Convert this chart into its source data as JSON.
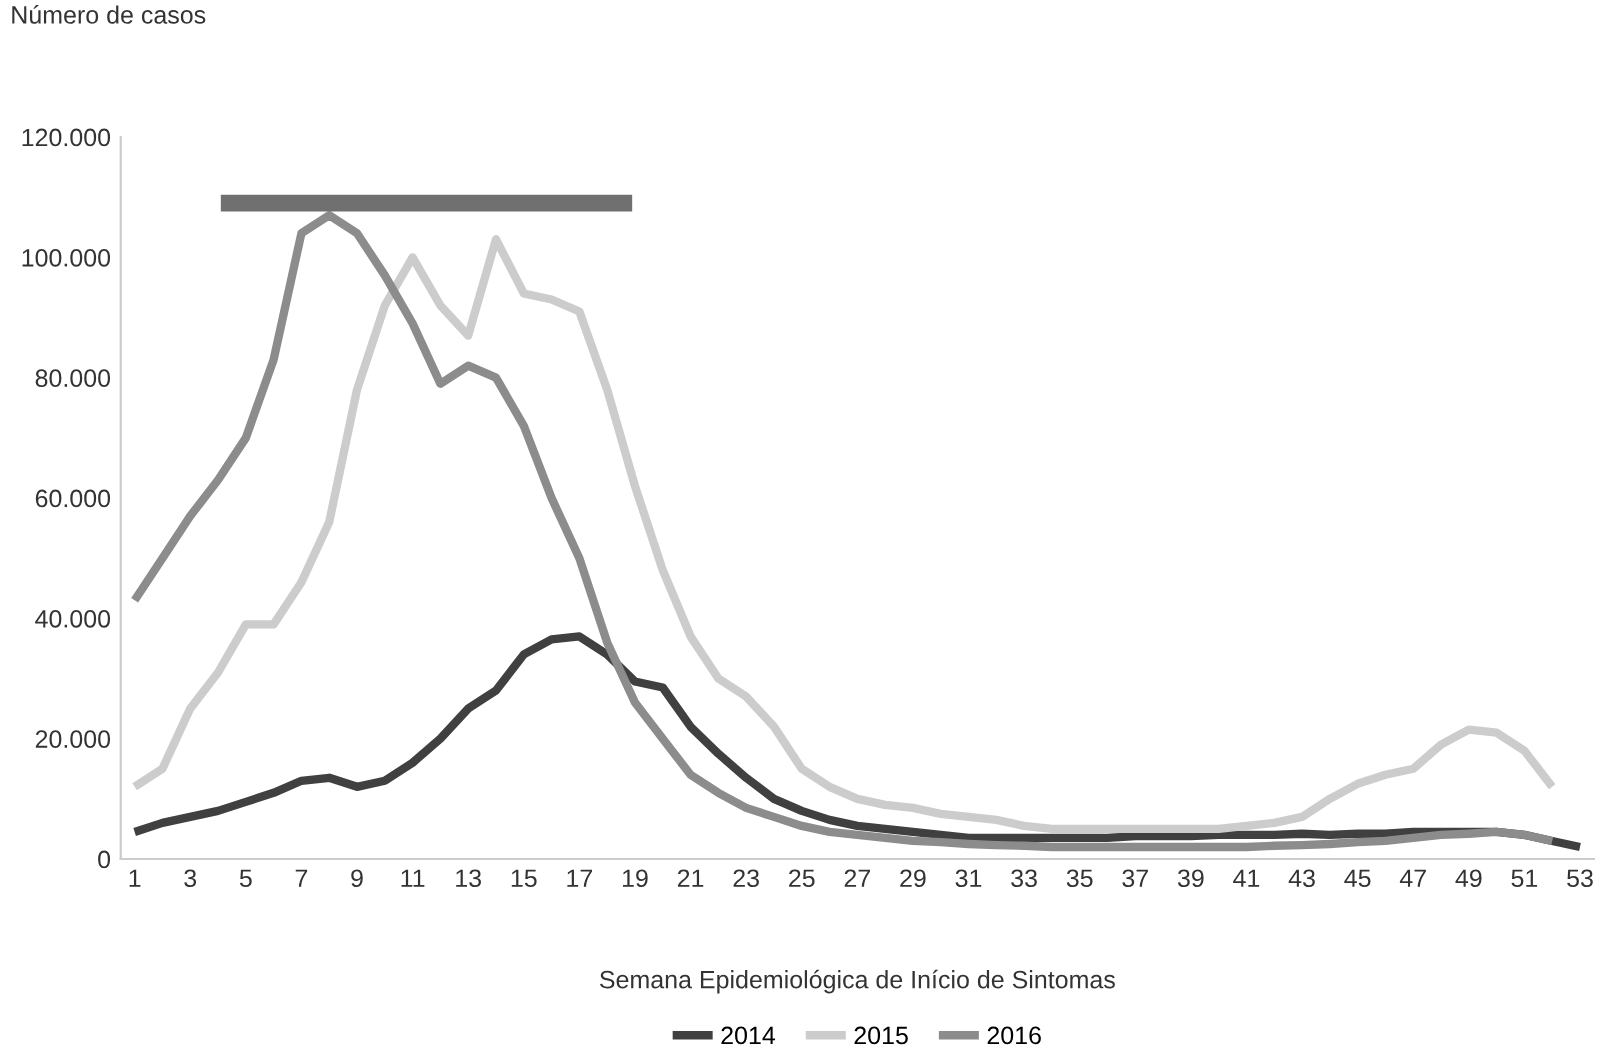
{
  "chart_data": {
    "type": "line",
    "ylabel": "Número de casos",
    "xlabel": "Semana Epidemiológica de Início de Sintomas",
    "xlim": [
      0.5,
      53.5
    ],
    "xticks": [
      1,
      3,
      5,
      7,
      9,
      11,
      13,
      15,
      17,
      19,
      21,
      23,
      25,
      27,
      29,
      31,
      33,
      35,
      37,
      39,
      41,
      43,
      45,
      47,
      49,
      51,
      53
    ],
    "ylim": [
      0,
      120000
    ],
    "yticks": [
      {
        "value": 0,
        "label": "0"
      },
      {
        "value": 20000,
        "label": "20.000"
      },
      {
        "value": 40000,
        "label": "40.000"
      },
      {
        "value": 60000,
        "label": "60.000"
      },
      {
        "value": 80000,
        "label": "80.000"
      },
      {
        "value": 100000,
        "label": "100.000"
      },
      {
        "value": 120000,
        "label": "120.000"
      }
    ],
    "grid": false,
    "legend": "bottom",
    "marker": "none",
    "line_style": "solid",
    "series": [
      {
        "name": "2014",
        "color": "#404040",
        "x": [
          1,
          2,
          3,
          4,
          5,
          6,
          7,
          8,
          9,
          10,
          11,
          12,
          13,
          14,
          15,
          16,
          17,
          18,
          19,
          20,
          21,
          22,
          23,
          24,
          25,
          26,
          27,
          28,
          29,
          30,
          31,
          32,
          33,
          34,
          35,
          36,
          37,
          38,
          39,
          40,
          41,
          42,
          43,
          44,
          45,
          46,
          47,
          48,
          49,
          50,
          51,
          52,
          53
        ],
        "values": [
          4500,
          6000,
          7000,
          8000,
          9500,
          11000,
          13000,
          13500,
          12000,
          13000,
          16000,
          20000,
          25000,
          28000,
          34000,
          36500,
          37000,
          34000,
          29500,
          28500,
          22000,
          17500,
          13500,
          10000,
          8000,
          6500,
          5500,
          5000,
          4500,
          4000,
          3500,
          3500,
          3500,
          3500,
          3500,
          3500,
          3800,
          3800,
          3800,
          4000,
          4000,
          4000,
          4200,
          4000,
          4200,
          4200,
          4500,
          4500,
          4500,
          4500,
          4000,
          3000,
          2000
        ]
      },
      {
        "name": "2015",
        "color": "#cccccc",
        "x": [
          1,
          2,
          3,
          4,
          5,
          6,
          7,
          8,
          9,
          10,
          11,
          12,
          13,
          14,
          15,
          16,
          17,
          18,
          19,
          20,
          21,
          22,
          23,
          24,
          25,
          26,
          27,
          28,
          29,
          30,
          31,
          32,
          33,
          34,
          35,
          36,
          37,
          38,
          39,
          40,
          41,
          42,
          43,
          44,
          45,
          46,
          47,
          48,
          49,
          50,
          51,
          52
        ],
        "values": [
          12000,
          15000,
          25000,
          31000,
          39000,
          39000,
          46000,
          56000,
          78000,
          92000,
          100000,
          92000,
          87000,
          103000,
          94000,
          93000,
          91000,
          78000,
          62000,
          48000,
          37000,
          30000,
          27000,
          22000,
          15000,
          12000,
          10000,
          9000,
          8500,
          7500,
          7000,
          6500,
          5500,
          5000,
          5000,
          5000,
          5000,
          5000,
          5000,
          5000,
          5500,
          6000,
          7000,
          10000,
          12500,
          14000,
          15000,
          19000,
          21500,
          21000,
          18000,
          12000
        ]
      },
      {
        "name": "2016",
        "color": "#8c8c8c",
        "x": [
          1,
          2,
          3,
          4,
          5,
          6,
          7,
          8,
          9,
          10,
          11,
          12,
          13,
          14,
          15,
          16,
          17,
          18,
          19,
          20,
          21,
          22,
          23,
          24,
          25,
          26,
          27,
          28,
          29,
          30,
          31,
          32,
          33,
          34,
          35,
          36,
          37,
          38,
          39,
          40,
          41,
          42,
          43,
          44,
          45,
          46,
          47,
          48,
          49,
          50,
          51,
          52
        ],
        "values": [
          43000,
          50000,
          57000,
          63000,
          70000,
          83000,
          104000,
          107000,
          104000,
          97000,
          89000,
          79000,
          82000,
          80000,
          72000,
          60000,
          50000,
          36000,
          26000,
          20000,
          14000,
          11000,
          8500,
          7000,
          5500,
          4500,
          4000,
          3500,
          3000,
          2800,
          2500,
          2300,
          2200,
          2000,
          2000,
          2000,
          2000,
          2000,
          2000,
          2000,
          2000,
          2200,
          2300,
          2500,
          2800,
          3000,
          3500,
          4000,
          4200,
          4500,
          4000,
          3000
        ]
      },
      {
        "color": "#707070",
        "x": [
          4.1,
          18.9
        ],
        "values": [
          109000,
          109000
        ]
      }
    ]
  }
}
